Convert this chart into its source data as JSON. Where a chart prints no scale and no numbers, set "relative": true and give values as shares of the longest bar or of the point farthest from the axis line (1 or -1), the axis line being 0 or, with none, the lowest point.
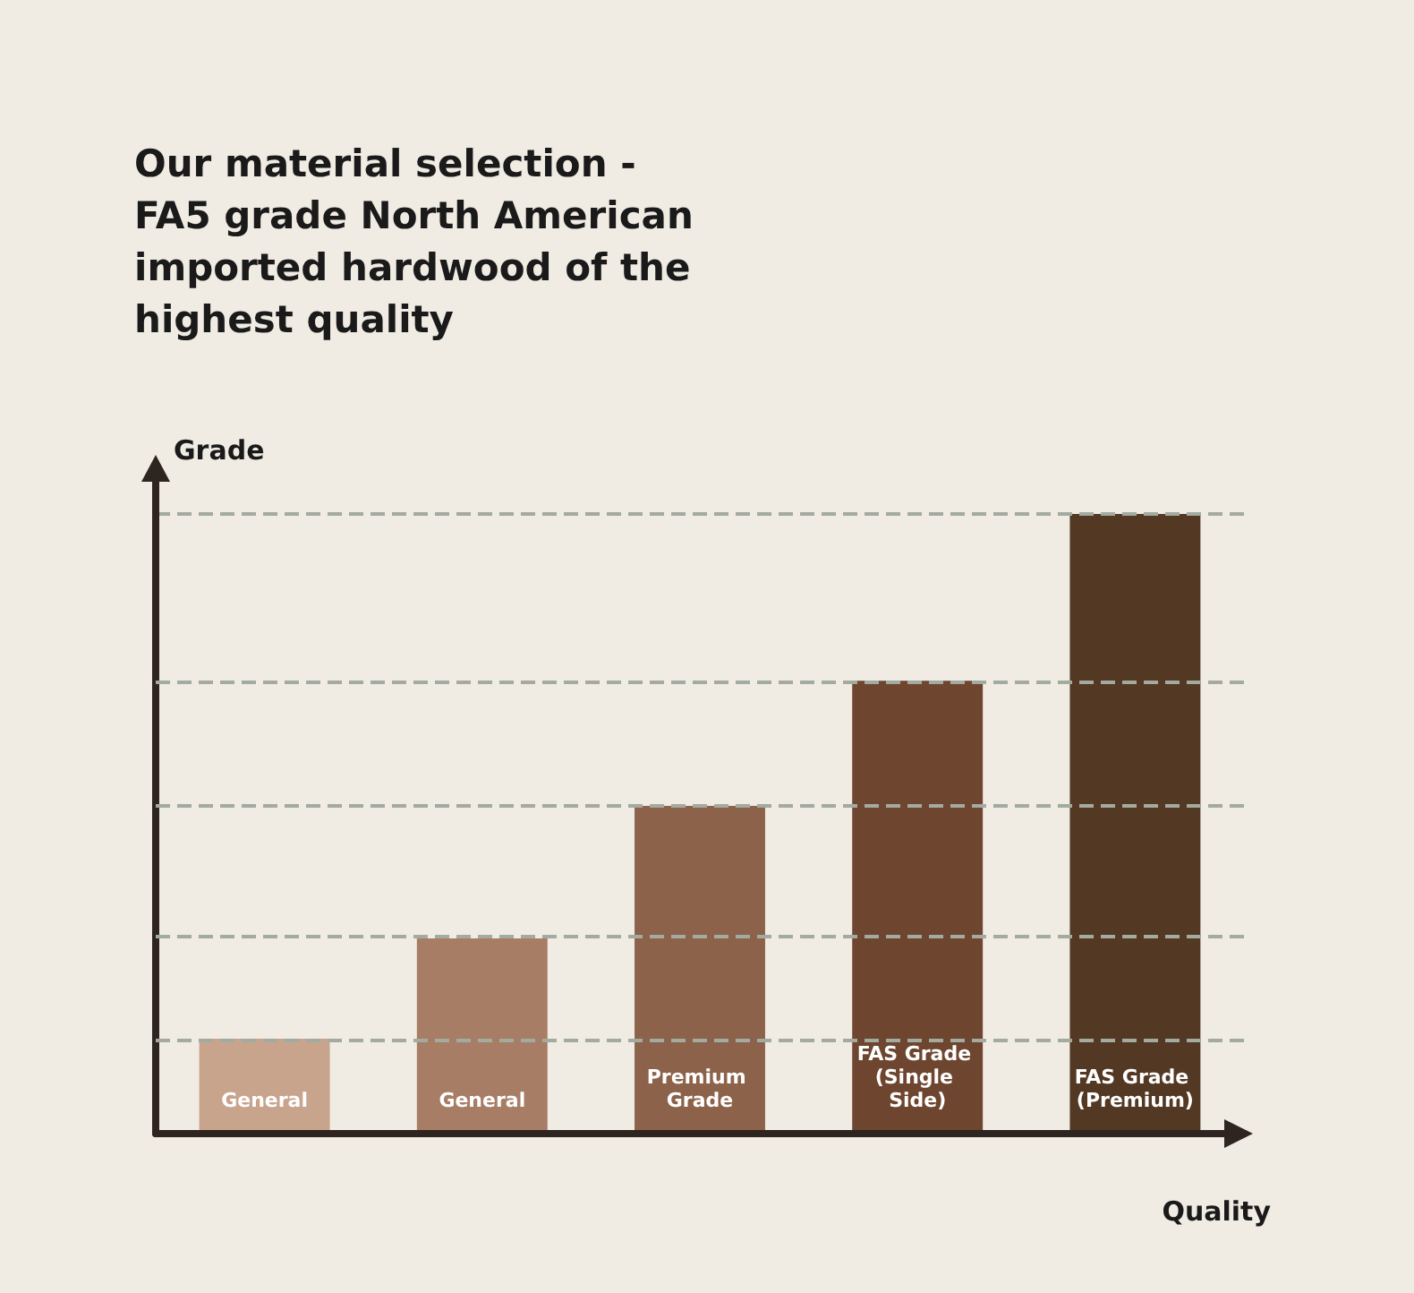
{
  "chart_data": {
    "type": "bar",
    "title": "Our material selection - FA5 grade North American imported hardwood of the highest quality",
    "xlabel": "Quality",
    "ylabel": "Grade",
    "relative": true,
    "categories": [
      "General",
      "General",
      "Premium Grade",
      "FAS Grade (Single Side)",
      "FAS Grade (Premium)"
    ],
    "values": [
      0.153,
      0.315,
      0.529,
      0.731,
      1
    ],
    "colors": [
      "#c8a48c",
      "#a87d66",
      "#8c624a",
      "#6e4630",
      "#533823"
    ],
    "ref_lines": [
      {
        "axis": "y",
        "value": 0.153,
        "color": "#a3aa9f",
        "line_style": "dashed"
      },
      {
        "axis": "y",
        "value": 0.315,
        "color": "#a3aa9f",
        "line_style": "dashed"
      },
      {
        "axis": "y",
        "value": 0.529,
        "color": "#a3aa9f",
        "line_style": "dashed"
      },
      {
        "axis": "y",
        "value": 0.731,
        "color": "#a3aa9f",
        "line_style": "dashed"
      },
      {
        "axis": "y",
        "value": 1,
        "color": "#a3aa9f",
        "line_style": "dashed"
      }
    ]
  }
}
